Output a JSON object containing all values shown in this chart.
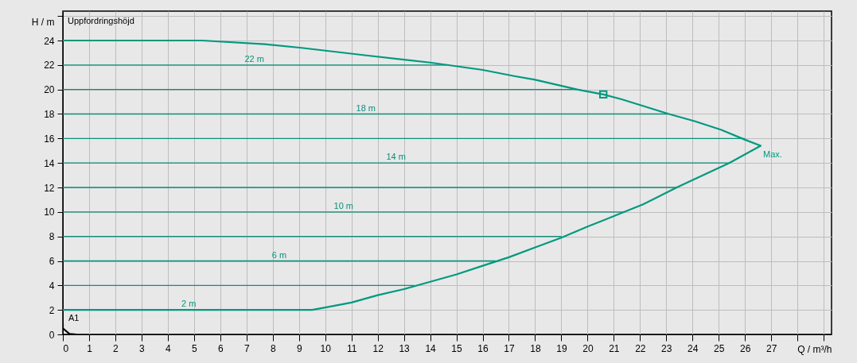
{
  "chart_data": {
    "type": "line",
    "title": "Uppfordringshöjd",
    "xlabel": "Q / m³/h",
    "ylabel": "H / m",
    "xlim": [
      0,
      29.3
    ],
    "ylim": [
      0,
      26.4
    ],
    "xticks": [
      0,
      1,
      2,
      3,
      4,
      5,
      6,
      7,
      8,
      9,
      10,
      11,
      12,
      13,
      14,
      15,
      16,
      17,
      18,
      19,
      20,
      21,
      22,
      23,
      24,
      25,
      26,
      27,
      {
        "value": 28,
        "label": null
      },
      {
        "value": 29,
        "label": null
      }
    ],
    "yticks": [
      0,
      2,
      4,
      6,
      8,
      10,
      12,
      14,
      16,
      18,
      20,
      22,
      24,
      {
        "value": 26,
        "label": null
      }
    ],
    "grid": true,
    "series": [
      {
        "color": "#0b8f7a",
        "x": [
          0,
          13.4
        ],
        "values": [
          4,
          4
        ]
      },
      {
        "name": "6 m",
        "color": "#0b8f7a",
        "x": [
          0,
          16.5
        ],
        "values": [
          6,
          6
        ]
      },
      {
        "color": "#0b8f7a",
        "x": [
          0,
          19
        ],
        "values": [
          8,
          8
        ]
      },
      {
        "name": "10 m",
        "color": "#0b8f7a",
        "x": [
          0,
          21.4
        ],
        "values": [
          10,
          10
        ]
      },
      {
        "color": "#0b8f7a",
        "x": [
          0,
          23.4
        ],
        "values": [
          12,
          12
        ]
      },
      {
        "name": "14 m",
        "color": "#0b8f7a",
        "x": [
          0,
          25.4
        ],
        "values": [
          14,
          14
        ]
      },
      {
        "color": "#0b8f7a",
        "x": [
          0,
          26
        ],
        "values": [
          16,
          16
        ]
      },
      {
        "name": "18 m",
        "color": "#0b8f7a",
        "x": [
          0,
          23.1
        ],
        "values": [
          18,
          18
        ]
      },
      {
        "color": "#0b8f7a",
        "x": [
          0,
          19.6
        ],
        "values": [
          20,
          20
        ]
      },
      {
        "name": "22 m",
        "color": "#0b8f7a",
        "x": [
          0,
          14.6
        ],
        "values": [
          22,
          22
        ]
      },
      {
        "color": "#00997f",
        "x": [
          0,
          5.3,
          7.7,
          9.1,
          11.5,
          14,
          16,
          17.2,
          18,
          19.6,
          20.6,
          21.3,
          23.1,
          24.1,
          25.1,
          26,
          26.6,
          25.4,
          23.9,
          23.4,
          22.1,
          21.4,
          20,
          19,
          18,
          17,
          16,
          15,
          14,
          13,
          12,
          11,
          10,
          9.5,
          0
        ],
        "values": [
          24,
          24,
          23.7,
          23.4,
          22.8,
          22.2,
          21.6,
          21.1,
          20.8,
          20,
          19.6,
          19.2,
          18,
          17.4,
          16.7,
          15.9,
          15.4,
          14,
          12.5,
          12,
          10.6,
          10,
          8.8,
          7.9,
          7.1,
          6.3,
          5.6,
          4.9,
          4.3,
          3.7,
          3.2,
          2.6,
          2.2,
          2,
          2
        ]
      },
      {
        "type": "scatter",
        "marker": "square",
        "color": "#00997f",
        "x": [
          20.6
        ],
        "values": [
          19.6
        ]
      },
      {
        "color": "#000000",
        "x": [
          0,
          0,
          0.25,
          0.5
        ],
        "values": [
          0.9,
          0.5,
          0.05,
          0
        ]
      }
    ],
    "annotations": [
      {
        "text": "2 m",
        "x": 4.8,
        "y": 2
      },
      {
        "text": "Max.",
        "x": 26.6,
        "y": 15.4
      },
      {
        "text": "A1",
        "x": 0,
        "y": 0.9
      }
    ]
  }
}
